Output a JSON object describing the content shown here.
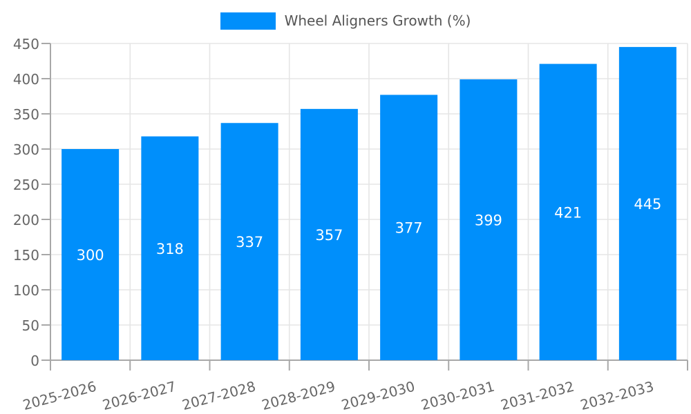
{
  "legend": {
    "label": "Wheel Aligners Growth (%)"
  },
  "chart_data": {
    "type": "bar",
    "title": "Wheel Aligners Growth (%)",
    "categories": [
      "2025-2026",
      "2026-2027",
      "2027-2028",
      "2028-2029",
      "2029-2030",
      "2030-2031",
      "2031-2032",
      "2032-2033"
    ],
    "values": [
      300,
      318,
      337,
      357,
      377,
      399,
      421,
      445
    ],
    "xlabel": "",
    "ylabel": "",
    "ylim": [
      0,
      450
    ],
    "ytick_step": 50,
    "ytick_labels": [
      "0",
      "50",
      "100",
      "150",
      "200",
      "250",
      "300",
      "350",
      "400",
      "450"
    ],
    "grid": true,
    "legend_position": "top",
    "x_label_rotation_deg": -15,
    "colors": {
      "bar": "#008FFB",
      "value_label": "#ffffff",
      "axis_text": "#666666",
      "legend_text": "#555555",
      "gridline": "#e5e5e5",
      "spine": "#a8a8a8",
      "background": "#ffffff"
    }
  }
}
